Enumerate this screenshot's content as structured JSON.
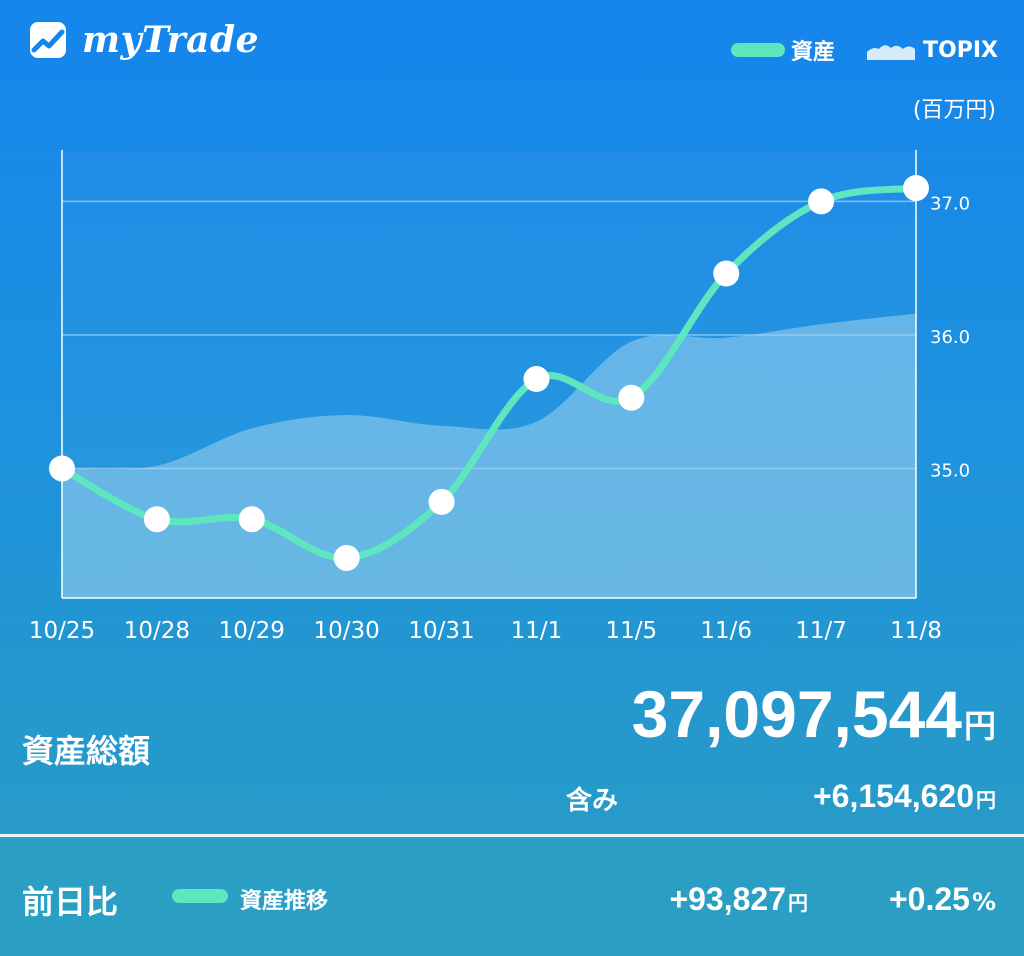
{
  "app": {
    "name": "myTrade",
    "logo_icon": "trend-chart-logo-icon"
  },
  "legend": {
    "asset": "資産",
    "topix": "TOPIX"
  },
  "unit": "(百万円)",
  "colors": {
    "asset_line": "#5ee6bf",
    "topix_area": "#9cd2ee",
    "background": "#1a8ce5"
  },
  "chart_data": {
    "type": "line",
    "categories": [
      "10/25",
      "10/28",
      "10/29",
      "10/30",
      "10/31",
      "11/1",
      "11/5",
      "11/6",
      "11/7",
      "11/8"
    ],
    "series": [
      {
        "name": "資産",
        "values": [
          35.0,
          34.62,
          34.62,
          34.33,
          34.75,
          35.67,
          35.53,
          36.46,
          37.0,
          37.1
        ]
      },
      {
        "name": "TOPIX",
        "values": [
          35.0,
          35.02,
          35.3,
          35.4,
          35.32,
          35.35,
          35.95,
          35.98,
          36.08,
          36.16
        ]
      }
    ],
    "yticks": [
      35.0,
      36.0,
      37.0
    ],
    "ytick_labels": [
      "35.0",
      "36.0",
      "37.0"
    ],
    "ylim": [
      34.03,
      37.37
    ],
    "grid": true,
    "legend_position": "top-right"
  },
  "summary": {
    "total_label": "資産総額",
    "total_value": "37,097,544",
    "yen": "円",
    "included_label": "含み",
    "included_value": "+6,154,620"
  },
  "footer": {
    "prev_day_label": "前日比",
    "legend_label": "資産推移",
    "diff_value": "+93,827",
    "pct_value": "+0.25",
    "pct_sign": "%"
  }
}
